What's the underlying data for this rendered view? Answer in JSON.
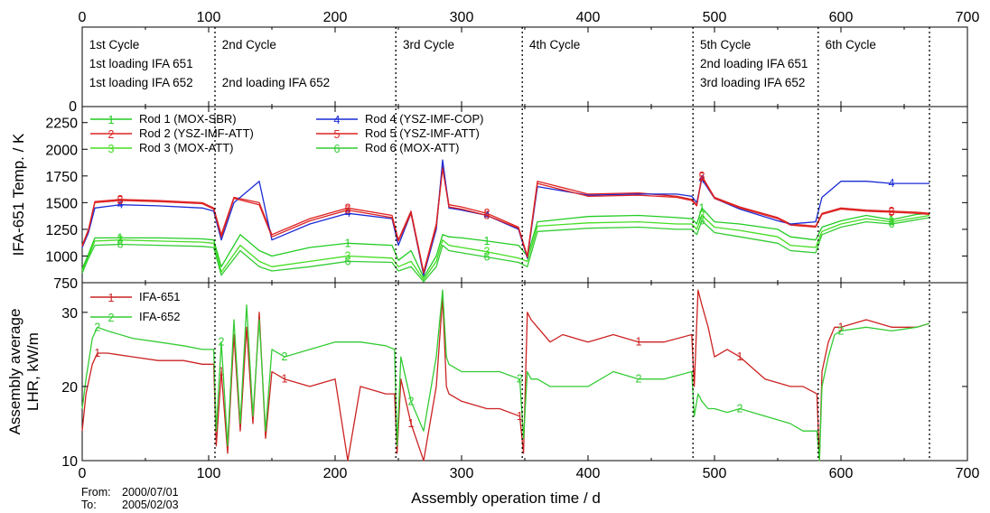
{
  "chart_data": {
    "type": "line",
    "x_top_ticks": [
      "0",
      "100",
      "200",
      "300",
      "400",
      "500",
      "600",
      "700"
    ],
    "x_bottom_ticks": [
      "0",
      "100",
      "200",
      "300",
      "400",
      "500",
      "600",
      "700"
    ],
    "xlabel": "Assembly operation time / d",
    "xlim": [
      0,
      700
    ],
    "footer": {
      "from_label": "From:",
      "from_date": "2000/07/01",
      "to_label": "To:",
      "to_date": "2005/02/03"
    },
    "cycle_boundaries": [
      105,
      248,
      348,
      483,
      582,
      670
    ],
    "cycle_panel": {
      "zero_label": "0",
      "cycles": [
        {
          "x": 2,
          "lines": [
            "1st Cycle",
            "1st loading IFA 651",
            "1st loading IFA 652"
          ]
        },
        {
          "x": 107,
          "lines": [
            "2nd Cycle",
            "",
            "2nd loading IFA 652"
          ]
        },
        {
          "x": 250,
          "lines": [
            "3rd Cycle"
          ]
        },
        {
          "x": 350,
          "lines": [
            "4th Cycle"
          ]
        },
        {
          "x": 485,
          "lines": [
            "5th Cycle",
            "2nd loading IFA 651",
            "3rd loading IFA 652"
          ]
        },
        {
          "x": 584,
          "lines": [
            "6th Cycle"
          ]
        }
      ]
    },
    "temperature_panel": {
      "ylabel": "IFA-651 Temp. / K",
      "ylim": [
        750,
        2400
      ],
      "yticks": [
        "750",
        "1000",
        "1250",
        "1500",
        "1750",
        "2000",
        "2250"
      ],
      "series": [
        {
          "num": "1",
          "name": "Rod 1 (MOX-SBR)",
          "color": "#22cc22",
          "x": [
            0,
            5,
            10,
            30,
            60,
            95,
            104,
            110,
            125,
            140,
            150,
            180,
            210,
            245,
            250,
            260,
            270,
            280,
            285,
            290,
            300,
            320,
            345,
            352,
            360,
            400,
            440,
            470,
            482,
            486,
            490,
            500,
            520,
            550,
            560,
            580,
            585,
            600,
            620,
            640,
            660,
            670
          ],
          "y": [
            880,
            1020,
            1170,
            1170,
            1170,
            1160,
            1150,
            900,
            1200,
            1050,
            1000,
            1080,
            1120,
            1100,
            960,
            1050,
            800,
            1000,
            1200,
            1180,
            1170,
            1140,
            1100,
            1000,
            1320,
            1370,
            1380,
            1360,
            1350,
            1300,
            1450,
            1320,
            1300,
            1250,
            1180,
            1150,
            1270,
            1330,
            1380,
            1340,
            1390,
            1400
          ]
        },
        {
          "num": "2",
          "name": "Rod 2 (YSZ-IMF-ATT)",
          "color": "#dd2222",
          "x": [
            0,
            5,
            10,
            30,
            60,
            95,
            104,
            110,
            120,
            140,
            150,
            180,
            210,
            245,
            250,
            260,
            270,
            280,
            285,
            290,
            300,
            320,
            345,
            352,
            360,
            400,
            440,
            470,
            482,
            486,
            490,
            500,
            520,
            550,
            560,
            580,
            585,
            600,
            620,
            640,
            660,
            670
          ],
          "y": [
            1100,
            1250,
            1510,
            1530,
            1520,
            1500,
            1450,
            1200,
            1550,
            1500,
            1200,
            1350,
            1450,
            1380,
            1150,
            1420,
            850,
            1300,
            1850,
            1480,
            1460,
            1400,
            1270,
            1000,
            1700,
            1580,
            1590,
            1560,
            1530,
            1480,
            1750,
            1550,
            1460,
            1360,
            1300,
            1280,
            1400,
            1450,
            1430,
            1420,
            1410,
            1400
          ]
        },
        {
          "num": "3",
          "name": "Rod 3 (MOX-ATT)",
          "color": "#44dd22",
          "x": [
            0,
            5,
            10,
            30,
            60,
            95,
            104,
            110,
            125,
            140,
            150,
            180,
            210,
            245,
            250,
            260,
            270,
            280,
            285,
            290,
            300,
            320,
            345,
            352,
            360,
            400,
            440,
            470,
            482,
            486,
            490,
            500,
            520,
            550,
            560,
            580,
            585,
            600,
            620,
            640,
            660,
            670
          ],
          "y": [
            860,
            1000,
            1140,
            1150,
            1140,
            1130,
            1120,
            850,
            1100,
            950,
            900,
            950,
            1000,
            980,
            900,
            950,
            780,
            950,
            1150,
            1100,
            1080,
            1040,
            980,
            950,
            1280,
            1310,
            1320,
            1300,
            1300,
            1250,
            1380,
            1270,
            1240,
            1180,
            1100,
            1080,
            1230,
            1300,
            1350,
            1320,
            1360,
            1380
          ]
        },
        {
          "num": "4",
          "name": "Rod 4 (YSZ-IMF-COP)",
          "color": "#1a2bd6",
          "x": [
            0,
            5,
            10,
            30,
            60,
            95,
            104,
            110,
            120,
            140,
            150,
            180,
            210,
            245,
            250,
            260,
            270,
            280,
            285,
            290,
            300,
            320,
            345,
            352,
            360,
            400,
            440,
            470,
            482,
            486,
            490,
            500,
            520,
            550,
            560,
            580,
            585,
            600,
            620,
            640,
            660,
            670
          ],
          "y": [
            1080,
            1220,
            1450,
            1480,
            1470,
            1450,
            1420,
            1150,
            1500,
            1700,
            1150,
            1300,
            1400,
            1350,
            1100,
            1400,
            820,
            1250,
            1900,
            1450,
            1430,
            1380,
            1250,
            980,
            1650,
            1570,
            1580,
            1580,
            1560,
            1500,
            1720,
            1540,
            1440,
            1330,
            1300,
            1320,
            1550,
            1700,
            1700,
            1680,
            1680,
            1680
          ]
        },
        {
          "num": "5",
          "name": "Rod 5 (YSZ-IMF-ATT)",
          "color": "#dd2222",
          "x": [
            0,
            5,
            10,
            30,
            60,
            95,
            104,
            110,
            120,
            140,
            150,
            180,
            210,
            245,
            250,
            260,
            270,
            280,
            285,
            290,
            300,
            320,
            345,
            352,
            360,
            400,
            440,
            470,
            482,
            486,
            490,
            500,
            520,
            550,
            560,
            580,
            585,
            600,
            620,
            640,
            660,
            670
          ],
          "y": [
            1090,
            1240,
            1500,
            1520,
            1510,
            1490,
            1440,
            1180,
            1540,
            1480,
            1180,
            1330,
            1430,
            1360,
            1140,
            1400,
            840,
            1280,
            1820,
            1460,
            1440,
            1380,
            1260,
            990,
            1680,
            1560,
            1570,
            1550,
            1520,
            1470,
            1740,
            1540,
            1450,
            1350,
            1290,
            1270,
            1390,
            1440,
            1420,
            1410,
            1400,
            1390
          ]
        },
        {
          "num": "6",
          "name": "Rod 6 (MOX-ATT)",
          "color": "#33cc33",
          "x": [
            0,
            5,
            10,
            30,
            60,
            95,
            104,
            110,
            125,
            140,
            150,
            180,
            210,
            245,
            250,
            260,
            270,
            280,
            285,
            290,
            300,
            320,
            345,
            352,
            360,
            400,
            440,
            470,
            482,
            486,
            490,
            500,
            520,
            550,
            560,
            580,
            585,
            600,
            620,
            640,
            660,
            670
          ],
          "y": [
            840,
            980,
            1100,
            1110,
            1100,
            1090,
            1080,
            820,
            1050,
            900,
            860,
            900,
            950,
            940,
            860,
            900,
            760,
            900,
            1100,
            1050,
            1030,
            990,
            940,
            900,
            1230,
            1260,
            1270,
            1250,
            1250,
            1200,
            1330,
            1220,
            1180,
            1120,
            1050,
            1030,
            1200,
            1270,
            1320,
            1300,
            1340,
            1360
          ]
        }
      ]
    },
    "lhr_panel": {
      "ylabel_line1": "Assembly average",
      "ylabel_line2": "LHR, kW/m",
      "ylim": [
        10,
        34
      ],
      "yticks": [
        "10",
        "20",
        "30"
      ],
      "series": [
        {
          "num": "1",
          "name": "IFA-651",
          "color": "#cc2222",
          "x": [
            0,
            3,
            8,
            12,
            20,
            40,
            60,
            80,
            95,
            100,
            104,
            106,
            110,
            115,
            120,
            125,
            130,
            135,
            140,
            145,
            150,
            160,
            180,
            200,
            210,
            220,
            240,
            247,
            249,
            252,
            260,
            270,
            280,
            285,
            288,
            290,
            300,
            320,
            330,
            346,
            349,
            352,
            355,
            360,
            370,
            380,
            400,
            420,
            440,
            460,
            482,
            484,
            487,
            490,
            495,
            500,
            510,
            520,
            540,
            560,
            570,
            581,
            583,
            585,
            590,
            595,
            600,
            620,
            640,
            660,
            670
          ],
          "y": [
            14,
            19,
            23,
            24.5,
            24.5,
            24,
            23.5,
            23.5,
            23,
            23,
            23,
            12,
            22,
            11,
            27,
            14,
            28,
            15,
            30,
            13,
            22,
            21,
            20,
            21,
            10,
            20,
            19,
            19,
            11,
            21,
            15,
            10,
            20,
            32,
            20,
            19,
            18,
            17,
            17,
            16,
            11,
            30,
            29,
            28,
            26,
            27,
            26,
            27,
            26,
            26,
            27,
            20,
            33,
            31,
            28,
            24,
            25,
            24,
            21,
            20,
            20,
            19,
            10,
            22,
            26,
            28,
            28,
            29,
            28,
            28,
            28.5
          ]
        },
        {
          "num": "2",
          "name": "IFA-652",
          "color": "#33cc33",
          "x": [
            0,
            3,
            8,
            12,
            20,
            40,
            60,
            80,
            95,
            100,
            104,
            106,
            110,
            115,
            120,
            125,
            130,
            135,
            140,
            145,
            150,
            160,
            180,
            200,
            210,
            220,
            240,
            247,
            249,
            252,
            260,
            270,
            280,
            285,
            288,
            290,
            300,
            320,
            330,
            346,
            349,
            352,
            355,
            360,
            370,
            380,
            400,
            420,
            440,
            460,
            482,
            484,
            487,
            490,
            495,
            500,
            510,
            520,
            540,
            560,
            570,
            581,
            583,
            585,
            590,
            595,
            600,
            620,
            640,
            660,
            670
          ],
          "y": [
            17,
            21,
            26.5,
            28,
            27.5,
            26.5,
            26,
            25.5,
            25,
            25,
            25,
            14,
            26,
            12,
            29,
            15,
            31,
            16,
            29,
            14,
            25,
            24,
            25,
            26,
            26,
            26,
            25.5,
            25,
            12,
            24,
            18,
            14,
            24,
            33,
            24,
            23,
            22,
            22,
            22,
            21,
            13,
            22,
            21,
            21,
            20,
            20,
            20,
            22,
            21,
            21,
            22,
            16,
            19,
            18,
            17,
            17,
            16.5,
            17,
            16,
            15,
            14,
            14,
            10,
            20,
            24,
            27,
            27.5,
            28,
            27.5,
            28,
            28.5
          ]
        }
      ]
    }
  }
}
